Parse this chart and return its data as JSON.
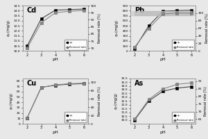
{
  "Cd": {
    "ph": [
      2,
      3,
      4,
      5,
      6
    ],
    "qe": [
      10.5,
      13.2,
      14.05,
      14.1,
      14.15
    ],
    "removal": [
      70,
      88,
      95,
      96,
      96.5
    ],
    "qe_ylim": [
      10.0,
      14.5
    ],
    "removal_ylim": [
      68,
      100
    ],
    "qe_yticks": [
      10.0,
      10.5,
      11.0,
      11.5,
      12.0,
      12.5,
      13.0,
      13.5,
      14.0,
      14.5
    ],
    "removal_yticks": [
      70,
      75,
      80,
      85,
      90,
      95,
      100
    ],
    "label": "Cd"
  },
  "Pb": {
    "ph": [
      2,
      3,
      4,
      5,
      6
    ],
    "qe": [
      50,
      500,
      790,
      800,
      810
    ],
    "removal": [
      10,
      60,
      98,
      100,
      100
    ],
    "qe_ylim": [
      0,
      900
    ],
    "removal_ylim": [
      0,
      120
    ],
    "qe_yticks": [
      0,
      100,
      200,
      300,
      400,
      500,
      600,
      700,
      800,
      900
    ],
    "removal_yticks": [
      0,
      20,
      40,
      60,
      80,
      100
    ],
    "shade_removal_min": 95,
    "shade_removal_max": 105,
    "label": "Pb"
  },
  "Cu": {
    "ph": [
      2,
      3,
      4,
      5,
      6
    ],
    "qe": [
      11,
      68,
      72,
      74,
      75
    ],
    "removal": [
      14,
      88,
      94,
      97,
      98
    ],
    "qe_ylim": [
      0,
      85
    ],
    "removal_ylim": [
      0,
      110
    ],
    "qe_yticks": [
      0,
      10,
      20,
      30,
      40,
      50,
      60,
      70,
      80
    ],
    "removal_yticks": [
      0,
      20,
      40,
      60,
      80,
      100
    ],
    "label": "Cu"
  },
  "As": {
    "ph": [
      2,
      3,
      4,
      5,
      6
    ],
    "qe": [
      10.0,
      12.5,
      13.8,
      14.2,
      14.4
    ],
    "removal": [
      65,
      78,
      85,
      88,
      89
    ],
    "qe_ylim": [
      9.5,
      15.5
    ],
    "removal_ylim": [
      62,
      92
    ],
    "qe_yticks": [
      10.0,
      10.5,
      11.0,
      11.5,
      12.0,
      12.5,
      13.0,
      13.5,
      14.0,
      14.5,
      15.0,
      15.5
    ],
    "removal_yticks": [
      65,
      70,
      75,
      80,
      85,
      90
    ],
    "label": "As"
  },
  "bg_color": "#e8e8e8",
  "line_color_qe": "#444444",
  "line_color_removal": "#888888",
  "markersize": 2.5,
  "linewidth": 0.8,
  "xlabel": "pH",
  "ylabel_left": "$q_e$ (mg/g)",
  "ylabel_right": "Removal rate (%)",
  "legend_qe": "$q_e$",
  "legend_removal": "Removal rate"
}
